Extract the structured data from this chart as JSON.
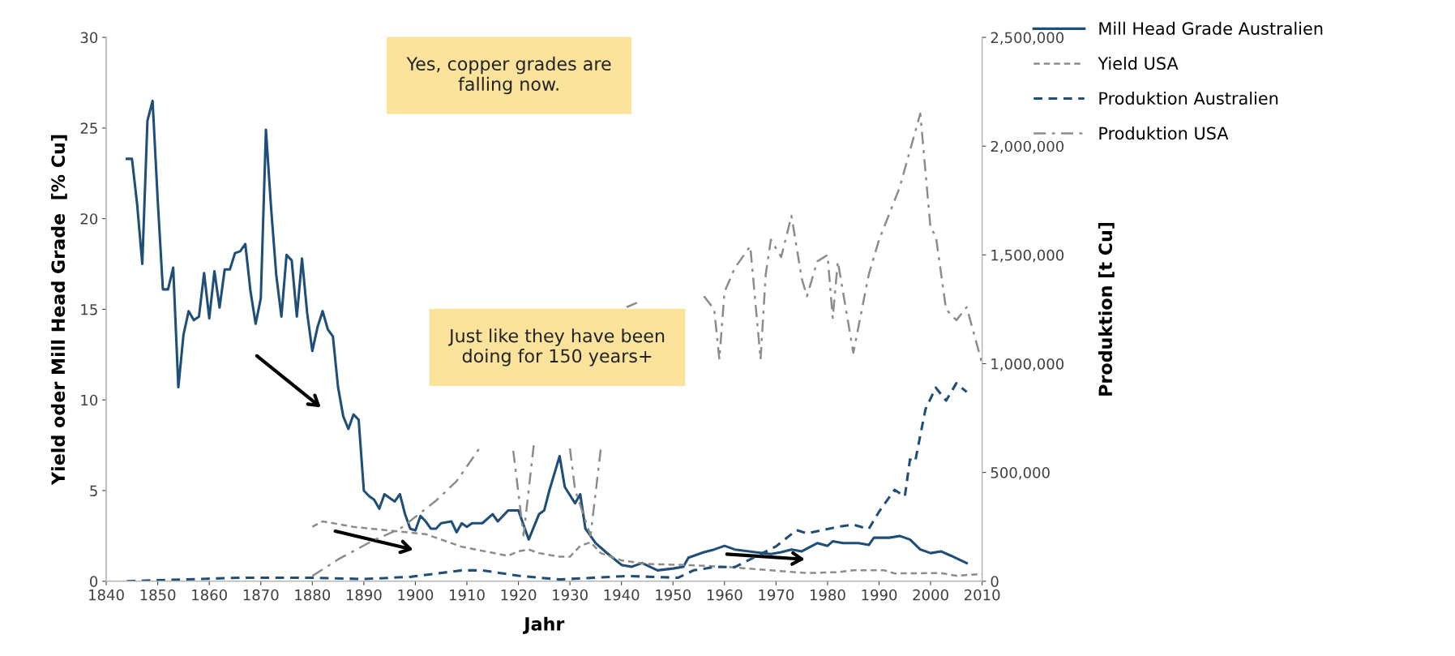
{
  "chart_data": {
    "type": "line",
    "xlabel": "Jahr",
    "ylabel": "Yield oder Mill Head Grade  [% Cu]",
    "y2label": "Produktion [t Cu]",
    "xlim": [
      1840,
      2010
    ],
    "xticks": [
      1840,
      1850,
      1860,
      1870,
      1880,
      1890,
      1900,
      1910,
      1920,
      1930,
      1940,
      1950,
      1960,
      1970,
      1980,
      1990,
      2000,
      2010
    ],
    "ylim": [
      0,
      30
    ],
    "yticks": [
      0,
      5,
      10,
      15,
      20,
      25,
      30
    ],
    "y2lim": [
      0,
      2500000
    ],
    "y2ticks": [
      0,
      {
        "value": 500000,
        "label": "500,000"
      },
      {
        "value": 1000000,
        "label": "1,000,000"
      },
      {
        "value": 1500000,
        "label": "1,500,000"
      },
      {
        "value": 2000000,
        "label": "2,000,000"
      },
      {
        "value": 2500000,
        "label": "2,500,000"
      }
    ],
    "grid": false,
    "legend": "top right",
    "annotations": [
      "Yes, copper grades are falling now.",
      "Just like they have been doing for 150 years+"
    ],
    "series": [
      {
        "name": "Mill Head Grade Australien",
        "color": "#1f4e79",
        "line_style": "solid",
        "x": [
          1844,
          1845,
          1846,
          1847,
          1848,
          1849,
          1850,
          1851,
          1852,
          1853,
          1854,
          1855,
          1856,
          1857,
          1858,
          1859,
          1860,
          1861,
          1862,
          1863,
          1864,
          1865,
          1866,
          1867,
          1868,
          1869,
          1870,
          1871,
          1872,
          1873,
          1874,
          1875,
          1876,
          1877,
          1878,
          1879,
          1880,
          1881,
          1882,
          1883,
          1884,
          1885,
          1886,
          1887,
          1888,
          1889,
          1890,
          1891,
          1892,
          1893,
          1894,
          1895,
          1896,
          1897,
          1898,
          1899,
          1900,
          1901,
          1902,
          1903,
          1904,
          1905,
          1907,
          1908,
          1909,
          1910,
          1911,
          1913,
          1915,
          1916,
          1917,
          1918,
          1920,
          1922,
          1924,
          1925,
          1926,
          1928,
          1929,
          1931,
          1932,
          1933,
          1935,
          1937,
          1940,
          1942,
          1944,
          1947,
          1950,
          1952,
          1953,
          1956,
          1958,
          1960,
          1962,
          1966,
          1969,
          1971,
          1973,
          1975,
          1978,
          1980,
          1981,
          1983,
          1986,
          1988,
          1989,
          1992,
          1994,
          1996,
          1998,
          2000,
          2002,
          2004,
          2007
        ],
        "values": [
          23.3,
          23.3,
          20.8,
          17.5,
          25.4,
          26.5,
          21,
          16.1,
          16.1,
          17.3,
          10.7,
          13.6,
          14.9,
          14.4,
          14.6,
          17.0,
          14.5,
          17.1,
          15.1,
          17.2,
          17.2,
          18.1,
          18.2,
          18.6,
          16.0,
          14.2,
          15.6,
          24.9,
          20.6,
          16.9,
          14.6,
          18.0,
          17.7,
          14.6,
          17.8,
          14.8,
          12.7,
          14.0,
          14.9,
          13.9,
          13.5,
          10.7,
          9.1,
          8.4,
          9.2,
          8.9,
          5.0,
          4.7,
          4.5,
          4.0,
          4.8,
          4.6,
          4.4,
          4.8,
          3.7,
          2.9,
          2.8,
          3.6,
          3.3,
          2.9,
          2.9,
          3.2,
          3.3,
          2.7,
          3.2,
          3.0,
          3.2,
          3.2,
          3.7,
          3.3,
          3.6,
          3.9,
          3.9,
          2.3,
          3.7,
          3.9,
          5.0,
          6.9,
          5.2,
          4.3,
          4.8,
          2.9,
          2.1,
          1.6,
          0.9,
          0.8,
          1.0,
          0.6,
          0.7,
          0.8,
          1.3,
          1.6,
          1.75,
          1.95,
          1.75,
          1.6,
          1.5,
          1.6,
          1.75,
          1.65,
          2.1,
          1.95,
          2.2,
          2.1,
          2.1,
          2.0,
          2.4,
          2.4,
          2.5,
          2.3,
          1.75,
          1.55,
          1.65,
          1.4,
          1.0
        ]
      },
      {
        "name": "Yield USA",
        "color": "#8c8c8c",
        "line_style": "dotted",
        "x": [
          1880,
          1882,
          1888,
          1895,
          1902,
          1905,
          1909,
          1918,
          1920,
          1922,
          1924,
          1928,
          1930,
          1932,
          1934,
          1936,
          1940,
          1945,
          1952,
          1960,
          1969,
          1976,
          1982,
          1985,
          1991,
          1993,
          2002,
          2005,
          2010
        ],
        "values": [
          3.0,
          3.3,
          3.0,
          2.8,
          2.6,
          2.3,
          1.9,
          1.4,
          1.65,
          1.75,
          1.55,
          1.35,
          1.35,
          1.95,
          2.15,
          1.55,
          1.15,
          0.95,
          0.9,
          0.8,
          0.6,
          0.45,
          0.5,
          0.6,
          0.6,
          0.43,
          0.45,
          0.3,
          0.4
        ]
      },
      {
        "name": "Produktion Australien",
        "color": "#1f4e79",
        "line_style": "dashed",
        "axis": "y2",
        "x": [
          1844,
          1866,
          1880,
          1890,
          1899,
          1909,
          1913,
          1920,
          1928,
          1941,
          1951,
          1954,
          1958,
          1962,
          1970,
          1974,
          1976,
          1979,
          1982,
          1985,
          1988,
          1990,
          1993,
          1995,
          1996,
          1997,
          1999,
          2001,
          2003,
          2005,
          2007
        ],
        "values": [
          0,
          16000,
          16000,
          10000,
          20000,
          50000,
          50000,
          25000,
          8000,
          24000,
          16000,
          50000,
          65000,
          65000,
          160000,
          235000,
          220000,
          235000,
          250000,
          260000,
          240000,
          320000,
          420000,
          390000,
          560000,
          550000,
          790000,
          890000,
          830000,
          910000,
          870000
        ]
      },
      {
        "name": "Produktion USA",
        "color": "#8c8c8c",
        "line_style": "dashdot",
        "axis": "y2",
        "x": [
          1880,
          1885,
          1892,
          1897,
          1904,
          1908,
          1913,
          1916,
          1919,
          1921,
          1923,
          1926,
          1930,
          1931,
          1934,
          1936,
          1939,
          1941,
          1943,
          1949,
          1956,
          1958,
          1959,
          1960,
          1962,
          1965,
          1967,
          1968,
          1969,
          1971,
          1973,
          1975,
          1976,
          1978,
          1980,
          1981,
          1982,
          1985,
          1988,
          1990,
          1994,
          1998,
          2000,
          2001,
          2003,
          2005,
          2007,
          2010
        ],
        "values": [
          24000,
          100000,
          190000,
          240000,
          370000,
          460000,
          630000,
          null,
          600000,
          210000,
          630000,
          null,
          610000,
          420000,
          210000,
          610000,
          null,
          1260000,
          1280000,
          null,
          1310000,
          1250000,
          1020000,
          1330000,
          1440000,
          1540000,
          1020000,
          1410000,
          1570000,
          1490000,
          1680000,
          1390000,
          1310000,
          1470000,
          1500000,
          1210000,
          1470000,
          1050000,
          1410000,
          1570000,
          1810000,
          2150000,
          1620000,
          1590000,
          1250000,
          1200000,
          1260000,
          1000000
        ]
      }
    ]
  }
}
